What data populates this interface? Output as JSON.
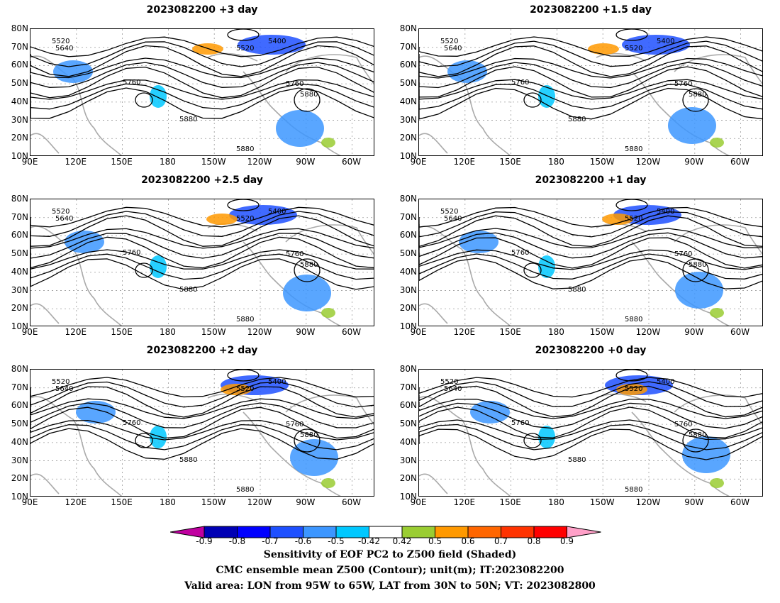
{
  "panels": [
    {
      "title": "2023082200 +3 day"
    },
    {
      "title": "2023082200 +1.5 day"
    },
    {
      "title": "2023082200 +2.5 day"
    },
    {
      "title": "2023082200 +1 day"
    },
    {
      "title": "2023082200 +2 day"
    },
    {
      "title": "2023082200 +0 day"
    }
  ],
  "axes": {
    "lat_labels": [
      "80N",
      "70N",
      "60N",
      "50N",
      "40N",
      "30N",
      "20N",
      "10N"
    ],
    "lon_labels": [
      "90E",
      "120E",
      "150E",
      "180",
      "150W",
      "120W",
      "90W",
      "60W"
    ]
  },
  "contour_labels": [
    "5400",
    "5520",
    "5640",
    "5760",
    "5880"
  ],
  "colorbar": {
    "ticks": [
      "-0.9",
      "-0.8",
      "-0.7",
      "-0.6",
      "-0.5",
      "-0.42",
      "0.42",
      "0.5",
      "0.6",
      "0.7",
      "0.8",
      "0.9"
    ],
    "colors": [
      "#0000b4",
      "#0000ff",
      "#1e50ff",
      "#3c96ff",
      "#00c8ff",
      "#ffffff",
      "#9acd32",
      "#ff9900",
      "#ff6600",
      "#ff3300",
      "#ff0000"
    ],
    "left_arrow_color": "#c000a0",
    "right_arrow_color": "#ffa0c8"
  },
  "footer": {
    "line1": "Sensitivity of EOF PC2 to Z500 field (Shaded)",
    "line2": "CMC ensemble mean Z500 (Contour); unit(m); IT:2023082200",
    "line3": "Valid area: LON from 95W to 65W, LAT from 30N to 50N; VT: 2023082800"
  }
}
